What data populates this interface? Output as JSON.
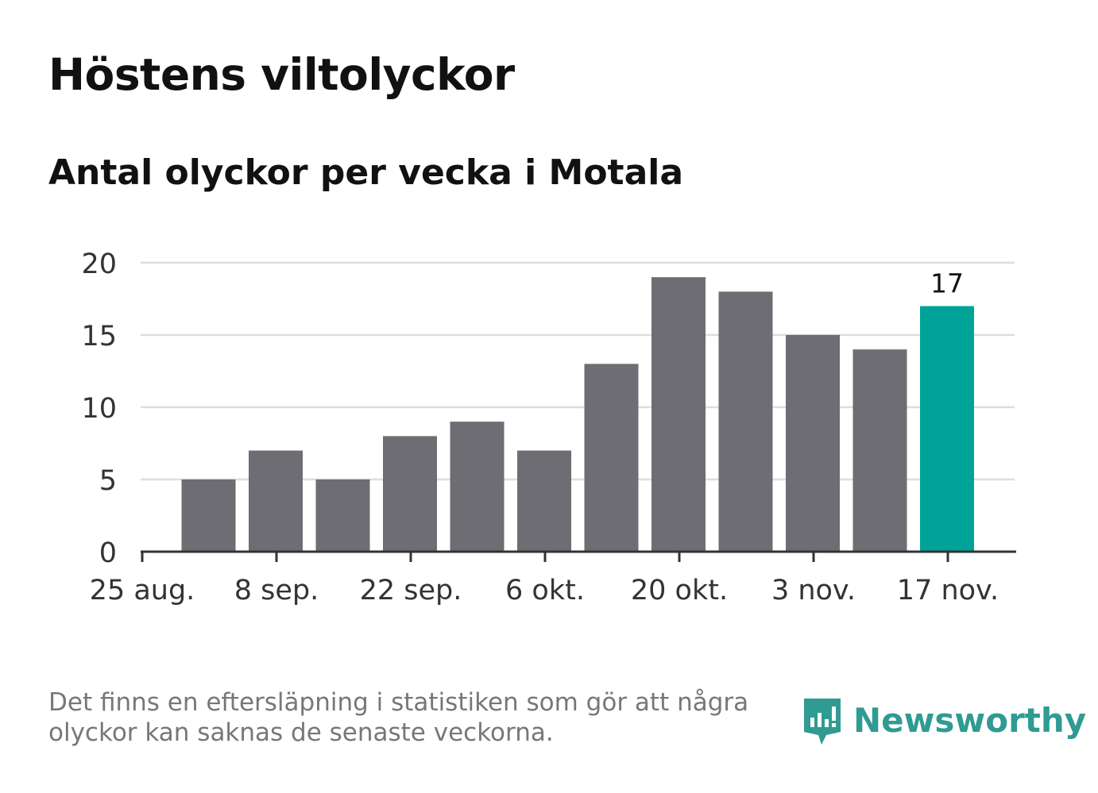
{
  "title": "Höstens viltolyckor",
  "subtitle": "Antal olyckor per vecka i Motala",
  "note": "Det finns en eftersläpning i statistiken som gör att några olyckor kan saknas de senaste veckorna.",
  "logo": {
    "text": "Newsworthy",
    "icon": "newsworthy-logo-icon"
  },
  "colors": {
    "bar": "#6e6d73",
    "highlight": "#00a398",
    "grid": "#dddddd",
    "axis": "#333333"
  },
  "chart_data": {
    "type": "bar",
    "title": "Höstens viltolyckor",
    "subtitle": "Antal olyckor per vecka i Motala",
    "xlabel": "",
    "ylabel": "",
    "ylim": [
      0,
      20
    ],
    "yticks": [
      0,
      5,
      10,
      15,
      20
    ],
    "xtick_labels": [
      "25 aug.",
      "8 sep.",
      "22 sep.",
      "6 okt.",
      "20 okt.",
      "3 nov.",
      "17 nov."
    ],
    "values": [
      5,
      7,
      5,
      8,
      9,
      7,
      13,
      19,
      18,
      15,
      14,
      17
    ],
    "highlight_index": 11,
    "data_labels": [
      {
        "index": 11,
        "text": "17"
      }
    ],
    "grid": true,
    "legend": "none"
  }
}
